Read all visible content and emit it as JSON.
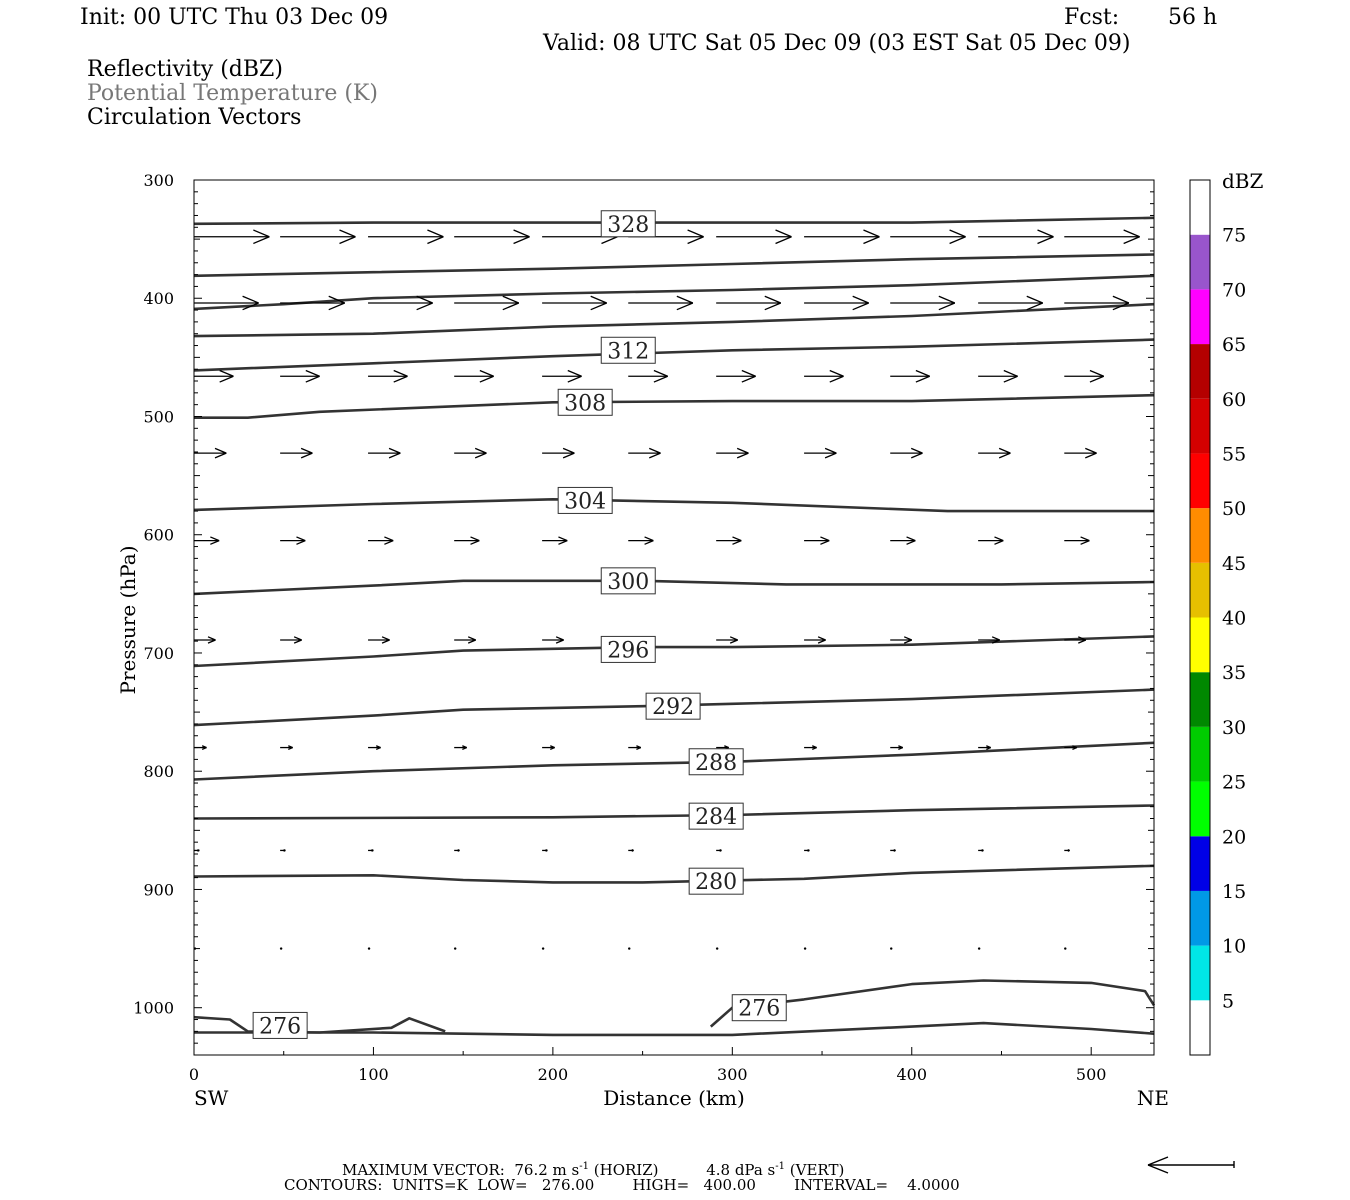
{
  "header": {
    "init": "Init: 00 UTC Thu 03 Dec 09",
    "fcst_label": "Fcst:",
    "fcst_value": "56 h",
    "valid": "Valid: 08 UTC Sat 05 Dec 09 (03 EST Sat 05 Dec 09)",
    "fields": [
      "Reflectivity (dBZ)",
      "Potential Temperature (K)",
      "Circulation Vectors"
    ]
  },
  "footer": {
    "max_vector_label": "MAXIMUM VECTOR:",
    "max_horiz": "76.2 m s",
    "max_horiz_unit": "(HORIZ)",
    "max_vert": "4.8 dPa s",
    "max_vert_unit": "(VERT)",
    "exponent": "-1",
    "contours_label": "CONTOURS:",
    "units": "UNITS=K",
    "low": "LOW=   276.00",
    "high": "HIGH=   400.00",
    "interval": "INTERVAL=    4.0000"
  },
  "chart_data": {
    "type": "line",
    "xlabel": "Distance (km)",
    "ylabel": "Pressure (hPa)",
    "xlim": [
      0,
      535
    ],
    "ylim": [
      300,
      1040
    ],
    "y_inverted": true,
    "x_ticks": [
      0,
      100,
      200,
      300,
      400,
      500
    ],
    "y_ticks": [
      300,
      400,
      500,
      600,
      700,
      800,
      900,
      1000
    ],
    "endpoint_left": "SW",
    "endpoint_right": "NE",
    "theta_contours": [
      {
        "label": "328",
        "points": [
          [
            0,
            337
          ],
          [
            100,
            336
          ],
          [
            200,
            336
          ],
          [
            300,
            336
          ],
          [
            400,
            336
          ],
          [
            535,
            332
          ]
        ],
        "label_at": [
          242,
          337
        ]
      },
      {
        "label": "",
        "points": [
          [
            0,
            381
          ],
          [
            100,
            378
          ],
          [
            200,
            375
          ],
          [
            300,
            371
          ],
          [
            400,
            367
          ],
          [
            535,
            363
          ]
        ]
      },
      {
        "label": "",
        "points": [
          [
            0,
            409
          ],
          [
            50,
            405
          ],
          [
            100,
            400
          ],
          [
            200,
            396
          ],
          [
            300,
            393
          ],
          [
            400,
            389
          ],
          [
            535,
            381
          ]
        ]
      },
      {
        "label": "",
        "points": [
          [
            0,
            432
          ],
          [
            100,
            430
          ],
          [
            200,
            424
          ],
          [
            300,
            420
          ],
          [
            400,
            415
          ],
          [
            535,
            405
          ]
        ]
      },
      {
        "label": "312",
        "points": [
          [
            0,
            461
          ],
          [
            100,
            455
          ],
          [
            200,
            449
          ],
          [
            300,
            444
          ],
          [
            400,
            441
          ],
          [
            535,
            435
          ]
        ],
        "label_at": [
          242,
          444
        ]
      },
      {
        "label": "308",
        "points": [
          [
            0,
            501
          ],
          [
            30,
            501
          ],
          [
            70,
            496
          ],
          [
            200,
            488
          ],
          [
            300,
            487
          ],
          [
            400,
            487
          ],
          [
            535,
            482
          ]
        ],
        "label_at": [
          218,
          488
        ]
      },
      {
        "label": "304",
        "points": [
          [
            0,
            579
          ],
          [
            100,
            574
          ],
          [
            200,
            570
          ],
          [
            300,
            573
          ],
          [
            420,
            580
          ],
          [
            535,
            580
          ]
        ],
        "label_at": [
          218,
          571
        ]
      },
      {
        "label": "300",
        "points": [
          [
            0,
            650
          ],
          [
            100,
            643
          ],
          [
            150,
            639
          ],
          [
            250,
            639
          ],
          [
            330,
            642
          ],
          [
            450,
            642
          ],
          [
            535,
            640
          ]
        ],
        "label_at": [
          242,
          639
        ]
      },
      {
        "label": "296",
        "points": [
          [
            0,
            711
          ],
          [
            100,
            703
          ],
          [
            150,
            698
          ],
          [
            250,
            695
          ],
          [
            300,
            695
          ],
          [
            400,
            693
          ],
          [
            535,
            686
          ]
        ],
        "label_at": [
          242,
          697
        ]
      },
      {
        "label": "292",
        "points": [
          [
            0,
            761
          ],
          [
            100,
            753
          ],
          [
            150,
            748
          ],
          [
            250,
            745
          ],
          [
            300,
            743
          ],
          [
            400,
            739
          ],
          [
            535,
            731
          ]
        ],
        "label_at": [
          267,
          745
        ]
      },
      {
        "label": "288",
        "points": [
          [
            0,
            807
          ],
          [
            100,
            800
          ],
          [
            200,
            795
          ],
          [
            300,
            792
          ],
          [
            400,
            786
          ],
          [
            535,
            776
          ]
        ],
        "label_at": [
          291,
          792
        ]
      },
      {
        "label": "284",
        "points": [
          [
            0,
            840
          ],
          [
            200,
            839
          ],
          [
            300,
            837
          ],
          [
            400,
            833
          ],
          [
            535,
            829
          ]
        ],
        "label_at": [
          291,
          838
        ]
      },
      {
        "label": "280",
        "points": [
          [
            0,
            889
          ],
          [
            100,
            888
          ],
          [
            150,
            892
          ],
          [
            200,
            894
          ],
          [
            250,
            894
          ],
          [
            340,
            891
          ],
          [
            400,
            886
          ],
          [
            535,
            880
          ]
        ],
        "label_at": [
          291,
          893
        ]
      },
      {
        "label": "276",
        "points": [
          [
            0,
            1021
          ],
          [
            100,
            1021
          ],
          [
            200,
            1023
          ],
          [
            300,
            1023
          ],
          [
            400,
            1016
          ],
          [
            440,
            1013
          ],
          [
            500,
            1018
          ],
          [
            535,
            1022
          ]
        ]
      },
      {
        "label": "276",
        "points": [
          [
            0,
            1008
          ],
          [
            20,
            1010
          ],
          [
            30,
            1020
          ],
          [
            70,
            1021
          ],
          [
            110,
            1017
          ],
          [
            120,
            1009
          ],
          [
            140,
            1020
          ]
        ],
        "label_at": [
          48,
          1015
        ]
      },
      {
        "label": "276",
        "points": [
          [
            288,
            1016
          ],
          [
            300,
            1000
          ],
          [
            340,
            993
          ],
          [
            400,
            980
          ],
          [
            440,
            977
          ],
          [
            500,
            979
          ],
          [
            530,
            986
          ],
          [
            535,
            998
          ]
        ],
        "label_at": [
          315,
          1000
        ]
      }
    ],
    "reflectivity_colorbar": {
      "title": "dBZ",
      "levels": [
        5,
        10,
        15,
        20,
        25,
        30,
        35,
        40,
        45,
        50,
        55,
        60,
        65,
        70,
        75
      ],
      "colors": [
        "#ffffff",
        "#00e6e6",
        "#0099e6",
        "#0000e6",
        "#00ff00",
        "#00cc00",
        "#008800",
        "#ffff00",
        "#e6c000",
        "#ff8c00",
        "#ff0000",
        "#d40000",
        "#b40000",
        "#ff00ff",
        "#9955cc",
        "#ffffff"
      ]
    },
    "vectors": {
      "x_positions": [
        0,
        48,
        97,
        145,
        194,
        242,
        291,
        340,
        388,
        437,
        485
      ],
      "levels": [
        {
          "p": 348,
          "len": 42
        },
        {
          "p": 404,
          "len": 36
        },
        {
          "p": 466,
          "len": 22
        },
        {
          "p": 531,
          "len": 18
        },
        {
          "p": 605,
          "len": 14
        },
        {
          "p": 689,
          "len": 12
        },
        {
          "p": 780,
          "len": 7
        },
        {
          "p": 867,
          "len": 3
        },
        {
          "p": 950,
          "len": 0.5
        }
      ]
    }
  }
}
